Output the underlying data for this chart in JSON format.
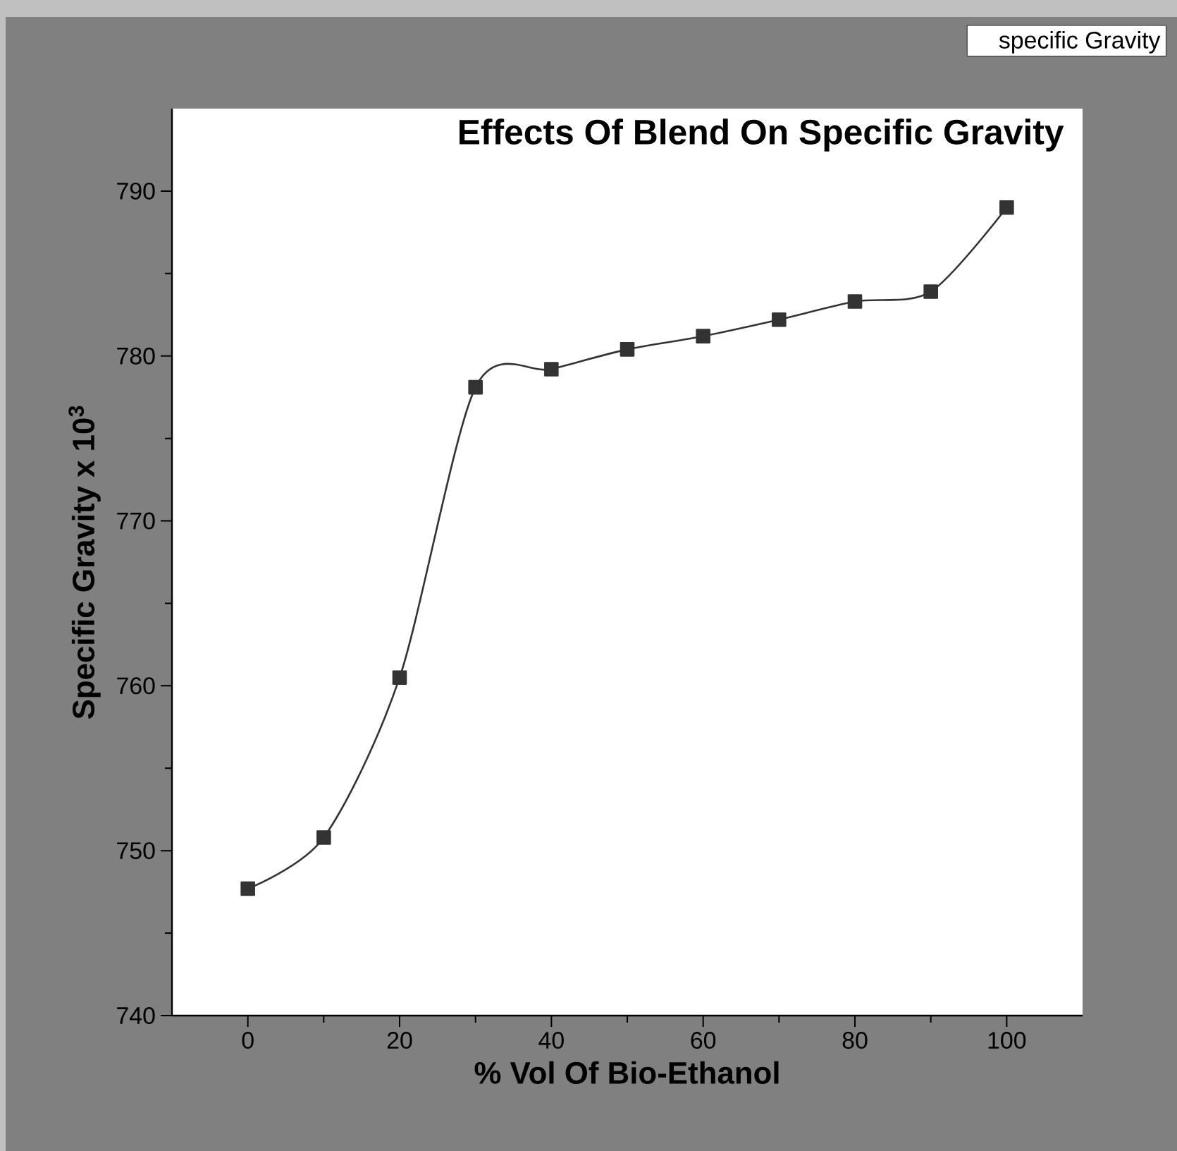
{
  "chart_data": {
    "type": "line",
    "title": "Effects Of Blend On Specific Gravity",
    "xlabel": "% Vol Of Bio-Ethanol",
    "ylabel": "Specific Gravity x 10$^{3}$",
    "x": [
      0,
      10,
      20,
      30,
      40,
      50,
      60,
      70,
      80,
      90,
      100
    ],
    "series": [
      {
        "name": "specific Gravity",
        "color": "#333333",
        "values": [
          747.7,
          750.8,
          760.5,
          778.1,
          779.2,
          780.4,
          781.2,
          782.2,
          783.3,
          783.9,
          789.0
        ]
      }
    ],
    "xlim": [
      -10,
      110
    ],
    "ylim": [
      740,
      795
    ],
    "xticks": [
      0,
      20,
      40,
      60,
      80,
      100
    ],
    "yticks": [
      740,
      750,
      760,
      770,
      780,
      790
    ],
    "marker": "square",
    "legend": "top right"
  }
}
